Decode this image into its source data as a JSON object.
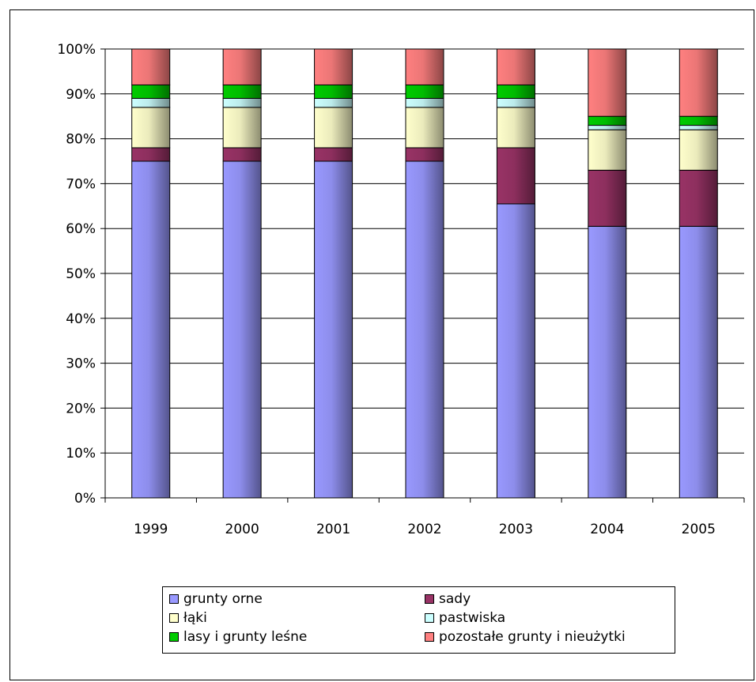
{
  "chart_data": {
    "type": "bar",
    "stacked": "percent",
    "categories": [
      "1999",
      "2000",
      "2001",
      "2002",
      "2003",
      "2004",
      "2005"
    ],
    "ylim": [
      0,
      100
    ],
    "yticks": [
      "0%",
      "10%",
      "20%",
      "30%",
      "40%",
      "50%",
      "60%",
      "70%",
      "80%",
      "90%",
      "100%"
    ],
    "grid": true,
    "legend_position": "bottom",
    "series": [
      {
        "name": "grunty orne",
        "color": "#9999ff",
        "values": [
          75,
          75,
          75,
          75,
          65.5,
          60.5,
          60.5
        ]
      },
      {
        "name": "sady",
        "color": "#993366",
        "values": [
          3,
          3,
          3,
          3,
          12.5,
          12.5,
          12.5
        ]
      },
      {
        "name": "łąki",
        "color": "#ffffcc",
        "values": [
          9,
          9,
          9,
          9,
          9,
          9,
          9
        ]
      },
      {
        "name": "pastwiska",
        "color": "#ccffff",
        "values": [
          2,
          2,
          2,
          2,
          2,
          1,
          1
        ]
      },
      {
        "name": "lasy i grunty leśne",
        "color": "#00cc00",
        "values": [
          3,
          3,
          3,
          3,
          3,
          2,
          2
        ]
      },
      {
        "name": "pozostałe grunty i nieużytki",
        "color": "#ff8080",
        "values": [
          8,
          8,
          8,
          8,
          8,
          15,
          15
        ]
      }
    ]
  }
}
